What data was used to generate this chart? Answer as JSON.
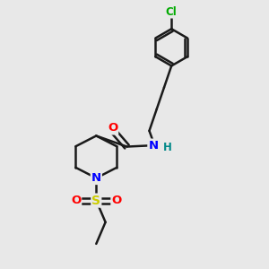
{
  "bg_color": "#e8e8e8",
  "bond_color": "#1a1a1a",
  "bond_width": 1.8,
  "atom_colors": {
    "O": "#ff0000",
    "N": "#0000ff",
    "S": "#cccc00",
    "Cl": "#00aa00",
    "H": "#008888",
    "C": "#1a1a1a"
  },
  "font_size": 9.5
}
